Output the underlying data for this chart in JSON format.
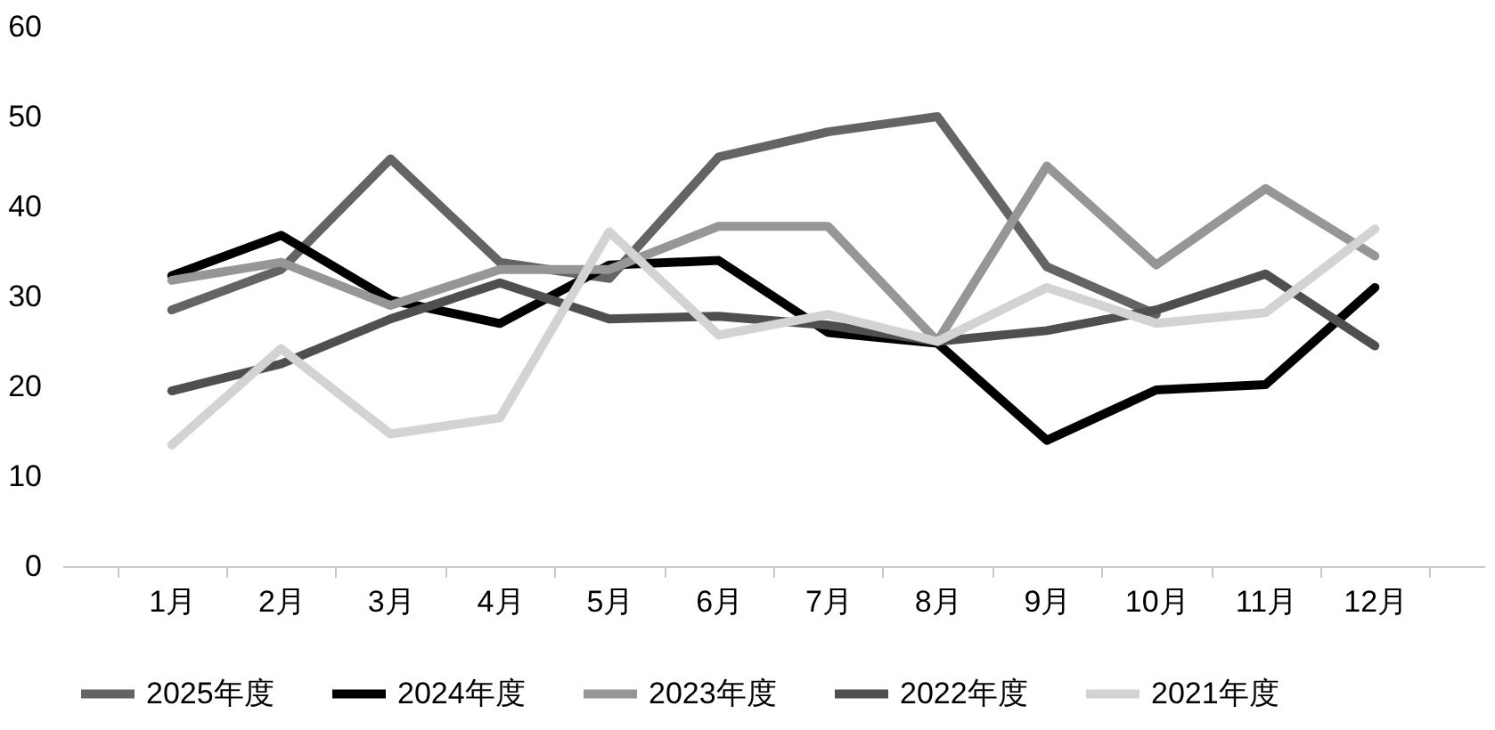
{
  "chart_data": {
    "type": "line",
    "categories": [
      "1月",
      "2月",
      "3月",
      "4月",
      "5月",
      "6月",
      "7月",
      "8月",
      "9月",
      "10月",
      "11月",
      "12月"
    ],
    "series": [
      {
        "name": "2025年度",
        "color": "#646464",
        "values": [
          28.5,
          33,
          45.3,
          33.8,
          32,
          45.5,
          48.3,
          50,
          33.3,
          28,
          null,
          null
        ]
      },
      {
        "name": "2024年度",
        "color": "#000000",
        "values": [
          32.3,
          36.8,
          29.6,
          27,
          33.5,
          34,
          26,
          24.8,
          14,
          19.6,
          20.2,
          31
        ]
      },
      {
        "name": "2023年度",
        "color": "#969696",
        "values": [
          31.8,
          33.8,
          29,
          33,
          33,
          37.8,
          37.8,
          25,
          44.5,
          33.5,
          42,
          34.5
        ]
      },
      {
        "name": "2022年度",
        "color": "#4f4f4f",
        "values": [
          19.5,
          22.5,
          27.5,
          31.5,
          27.5,
          27.8,
          26.8,
          25,
          26.2,
          28.5,
          32.5,
          24.5
        ]
      },
      {
        "name": "2021年度",
        "color": "#d3d3d3",
        "values": [
          13.5,
          24.2,
          14.7,
          16.5,
          37.2,
          25.7,
          28,
          25,
          31,
          27,
          28.2,
          37.5
        ]
      }
    ],
    "ylim": [
      0,
      60
    ],
    "yticks": [
      0,
      10,
      20,
      30,
      40,
      50,
      60
    ],
    "grid": false,
    "legend": "bottom",
    "marker": "none",
    "line_style": "solid"
  }
}
